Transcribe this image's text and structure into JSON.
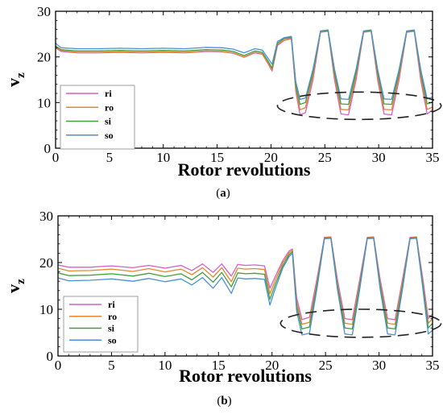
{
  "chart_data": [
    {
      "type": "line",
      "caption": "a",
      "xlabel": "Rotor revolutions",
      "ylabel": "v",
      "ylabel_sub": "z",
      "xlim": [
        0,
        35
      ],
      "ylim": [
        0,
        30
      ],
      "xticks": [
        0,
        5,
        10,
        15,
        20,
        25,
        30,
        35
      ],
      "yticks": [
        0,
        10,
        20,
        30
      ],
      "grid": false,
      "legend_placement": "lower-left",
      "annotation": "dashed ellipse around oscillation minima (x approx 21.5-35, y approx 6-12)",
      "ellipse": {
        "cx": 28.2,
        "cy": 9.3,
        "rx": 7.6,
        "ry": 3.0
      },
      "series": [
        {
          "name": "ri",
          "color": "#d65fc8",
          "x": [
            0,
            0.5,
            2,
            4,
            6,
            8,
            10,
            12,
            14,
            15.5,
            16.5,
            17.5,
            18.5,
            19.2,
            19.7,
            20.1,
            20.6,
            21.2,
            21.9,
            22.3,
            22.7,
            23.2,
            23.9,
            24.6,
            25.3,
            25.9,
            26.5,
            27.2,
            27.9,
            28.6,
            29.3,
            29.9,
            30.5,
            31.2,
            31.9,
            32.6,
            33.3,
            33.9,
            34.5,
            35
          ],
          "y": [
            22,
            21.2,
            20.9,
            20.9,
            21,
            20.9,
            21,
            20.9,
            21.2,
            21.1,
            20.8,
            19.9,
            20.9,
            20.6,
            18.6,
            16.9,
            22.5,
            23.6,
            24,
            12.5,
            7.3,
            7.8,
            15,
            25.4,
            25.6,
            15,
            7.5,
            7.3,
            15,
            25.4,
            25.6,
            15,
            7.5,
            7.3,
            15,
            25.4,
            25.6,
            15,
            7.5,
            8.4
          ]
        },
        {
          "name": "ro",
          "color": "#e8862c",
          "x": [
            0,
            0.5,
            2,
            4,
            6,
            8,
            10,
            12,
            14,
            15.5,
            16.5,
            17.5,
            18.5,
            19.2,
            19.7,
            20.1,
            20.6,
            21.2,
            21.9,
            22.3,
            22.7,
            23.2,
            23.9,
            24.6,
            25.3,
            25.9,
            26.5,
            27.2,
            27.9,
            28.6,
            29.3,
            29.9,
            30.5,
            31.2,
            31.9,
            32.6,
            33.3,
            33.9,
            34.5,
            35
          ],
          "y": [
            22.2,
            21.4,
            21,
            21,
            21.1,
            21,
            21.1,
            21,
            21.3,
            21.2,
            20.9,
            20,
            21,
            20.7,
            18.8,
            17.2,
            22.7,
            23.7,
            24.1,
            13,
            8.4,
            8.9,
            15.8,
            25.5,
            25.7,
            15.8,
            8.5,
            8.4,
            15.8,
            25.5,
            25.7,
            15.8,
            8.5,
            8.4,
            15.8,
            25.5,
            25.7,
            15.8,
            8.5,
            9
          ]
        },
        {
          "name": "si",
          "color": "#3fa03a",
          "x": [
            0,
            0.5,
            2,
            4,
            6,
            8,
            10,
            12,
            14,
            15.5,
            16.5,
            17.5,
            18.5,
            19.2,
            19.7,
            20.1,
            20.6,
            21.2,
            21.9,
            22.3,
            22.7,
            23.2,
            23.9,
            24.6,
            25.3,
            25.9,
            26.5,
            27.2,
            27.9,
            28.6,
            29.3,
            29.9,
            30.5,
            31.2,
            31.9,
            32.6,
            33.3,
            33.9,
            34.5,
            35
          ],
          "y": [
            22.4,
            21.6,
            21.3,
            21.3,
            21.4,
            21.3,
            21.4,
            21.3,
            21.6,
            21.5,
            21.2,
            20.3,
            21.3,
            21,
            19.2,
            17.6,
            23,
            24,
            24.3,
            13.8,
            9.6,
            10,
            16.6,
            25.6,
            25.8,
            16.6,
            9.7,
            9.6,
            16.6,
            25.6,
            25.8,
            16.6,
            9.7,
            9.6,
            16.6,
            25.6,
            25.8,
            16.6,
            9.7,
            10.1
          ]
        },
        {
          "name": "so",
          "color": "#4a90d9",
          "x": [
            0,
            0.5,
            2,
            4,
            6,
            8,
            10,
            12,
            14,
            15.5,
            16.5,
            17.5,
            18.5,
            19.2,
            19.7,
            20.1,
            20.6,
            21.2,
            21.9,
            22.3,
            22.7,
            23.2,
            23.9,
            24.6,
            25.3,
            25.9,
            26.5,
            27.2,
            27.9,
            28.6,
            29.3,
            29.9,
            30.5,
            31.2,
            31.9,
            32.6,
            33.3,
            33.9,
            34.5,
            35
          ],
          "y": [
            23,
            22,
            21.8,
            21.8,
            21.9,
            21.8,
            21.9,
            21.8,
            22.1,
            22,
            21.7,
            20.9,
            21.8,
            21.5,
            19.8,
            18.4,
            23.4,
            24.2,
            24.5,
            14.6,
            10.7,
            11,
            17.3,
            25.7,
            25.9,
            17.3,
            10.8,
            10.7,
            17.3,
            25.7,
            25.9,
            17.3,
            10.8,
            10.7,
            17.3,
            25.7,
            25.9,
            17.3,
            10.8,
            11.2
          ]
        }
      ]
    },
    {
      "type": "line",
      "caption": "b",
      "xlabel": "Rotor revolutions",
      "ylabel": "v",
      "ylabel_sub": "z",
      "xlim": [
        0,
        35
      ],
      "ylim": [
        0,
        30
      ],
      "xticks": [
        0,
        5,
        10,
        15,
        20,
        25,
        30,
        35
      ],
      "yticks": [
        0,
        10,
        20,
        30
      ],
      "grid": false,
      "legend_placement": "lower-left",
      "annotation": "dashed ellipse around oscillation minima (x approx 21.5-35, y approx 4-10)",
      "ellipse": {
        "cx": 28.3,
        "cy": 7.0,
        "rx": 7.5,
        "ry": 3.0
      },
      "series": [
        {
          "name": "ri",
          "color": "#d65fc8",
          "x": [
            0,
            1,
            3,
            5,
            7,
            8.5,
            10,
            11.5,
            12.5,
            13.5,
            14.5,
            15.3,
            16.2,
            16.8,
            17.5,
            18.4,
            19.3,
            19.8,
            20.3,
            21,
            21.6,
            21.9,
            22.3,
            22.8,
            23.5,
            24.2,
            24.9,
            25.5,
            26.1,
            26.8,
            27.5,
            28.2,
            28.9,
            29.5,
            30.1,
            30.8,
            31.5,
            32.2,
            32.9,
            33.5,
            34.1,
            34.6,
            35
          ],
          "y": [
            19.5,
            19,
            19,
            19.3,
            18.9,
            19.4,
            18.8,
            19.4,
            18.3,
            19.7,
            17.9,
            19.7,
            17.1,
            19.6,
            19.4,
            19.5,
            19.3,
            14.5,
            17,
            20.4,
            22.5,
            22.9,
            12.5,
            7.8,
            8.3,
            16.5,
            25.4,
            25.5,
            16.5,
            8,
            7.8,
            16.5,
            25.4,
            25.5,
            16.5,
            8,
            7.8,
            16.5,
            25.4,
            25.5,
            16.5,
            8,
            9
          ]
        },
        {
          "name": "ro",
          "color": "#e8862c",
          "x": [
            0,
            1,
            3,
            5,
            7,
            8.5,
            10,
            11.5,
            12.5,
            13.5,
            14.5,
            15.3,
            16.2,
            16.8,
            17.5,
            18.4,
            19.3,
            19.8,
            20.3,
            21,
            21.6,
            21.9,
            22.3,
            22.8,
            23.5,
            24.2,
            24.9,
            25.5,
            26.1,
            26.8,
            27.5,
            28.2,
            28.9,
            29.5,
            30.1,
            30.8,
            31.5,
            32.2,
            32.9,
            33.5,
            34.1,
            34.6,
            35
          ],
          "y": [
            18.8,
            18.2,
            18.3,
            18.6,
            18.1,
            18.7,
            18,
            18.6,
            17.4,
            18.9,
            16.9,
            18.9,
            15.9,
            18.8,
            18.6,
            18.7,
            18.5,
            13.3,
            16.2,
            19.9,
            22.1,
            22.6,
            11.5,
            6.8,
            7.2,
            15.8,
            25.3,
            25.4,
            15.8,
            7,
            6.8,
            15.8,
            25.3,
            25.4,
            15.8,
            7,
            6.8,
            15.8,
            25.3,
            25.4,
            15.8,
            7,
            8
          ]
        },
        {
          "name": "si",
          "color": "#3fa03a",
          "x": [
            0,
            1,
            3,
            5,
            7,
            8.5,
            10,
            11.5,
            12.5,
            13.5,
            14.5,
            15.3,
            16.2,
            16.8,
            17.5,
            18.4,
            19.3,
            19.8,
            20.3,
            21,
            21.6,
            21.9,
            22.3,
            22.8,
            23.5,
            24.2,
            24.9,
            25.5,
            26.1,
            26.8,
            27.5,
            28.2,
            28.9,
            29.5,
            30.1,
            30.8,
            31.5,
            32.2,
            32.9,
            33.5,
            34.1,
            34.6,
            35
          ],
          "y": [
            17.8,
            17.2,
            17.3,
            17.6,
            17.1,
            17.7,
            17,
            17.6,
            16.3,
            17.9,
            15.8,
            17.9,
            14.8,
            17.8,
            17.6,
            17.7,
            17.5,
            12.1,
            15.3,
            19.3,
            21.7,
            22.3,
            10.6,
            5.8,
            6.2,
            15.1,
            25.2,
            25.3,
            15.1,
            6,
            5.8,
            15.1,
            25.2,
            25.3,
            15.1,
            6,
            5.8,
            15.1,
            25.2,
            25.3,
            15.1,
            6,
            7
          ]
        },
        {
          "name": "so",
          "color": "#4a90d9",
          "x": [
            0,
            1,
            3,
            5,
            7,
            8.5,
            10,
            11.5,
            12.5,
            13.5,
            14.5,
            15.3,
            16.2,
            16.8,
            17.5,
            18.4,
            19.3,
            19.8,
            20.3,
            21,
            21.6,
            21.9,
            22.3,
            22.8,
            23.5,
            24.2,
            24.9,
            25.5,
            26.1,
            26.8,
            27.5,
            28.2,
            28.9,
            29.5,
            30.1,
            30.8,
            31.5,
            32.2,
            32.9,
            33.5,
            34.1,
            34.6,
            35
          ],
          "y": [
            16.7,
            16.1,
            16.2,
            16.5,
            16,
            16.6,
            15.9,
            16.5,
            15.2,
            16.8,
            14.5,
            16.8,
            13.4,
            16.7,
            16.5,
            16.6,
            16.4,
            10.9,
            14.4,
            18.8,
            21.3,
            22,
            9.6,
            4.5,
            4.9,
            14.4,
            25.1,
            25.2,
            14.4,
            4.7,
            4.5,
            14.4,
            25.1,
            25.2,
            14.4,
            4.7,
            4.5,
            14.4,
            25.1,
            25.2,
            14.4,
            4.7,
            5.5
          ]
        }
      ]
    }
  ]
}
